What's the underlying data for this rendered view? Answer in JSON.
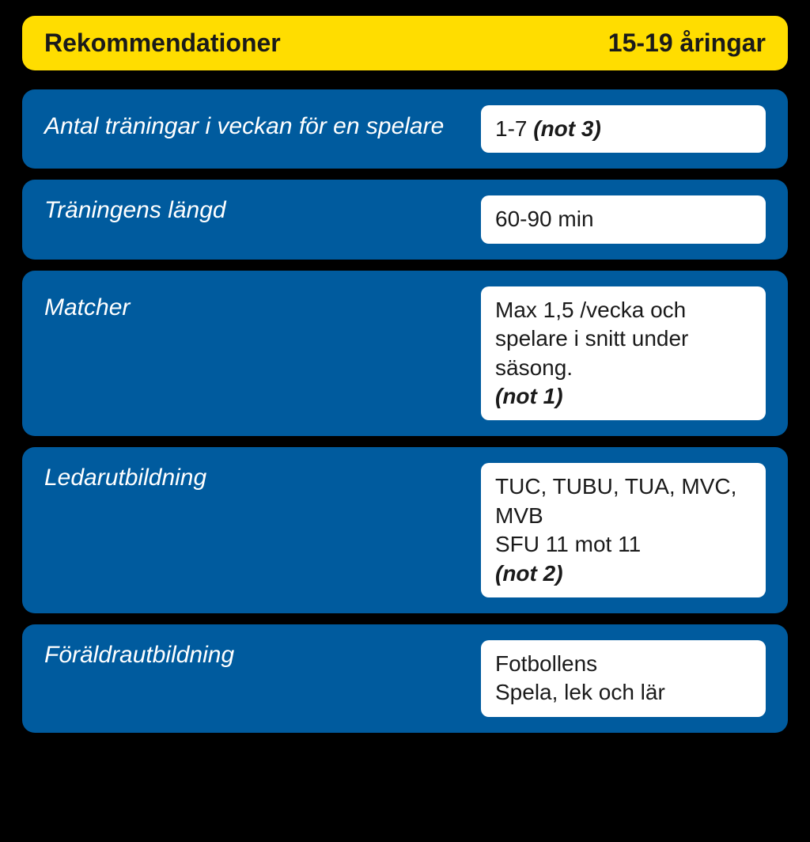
{
  "header": {
    "title": "Rekommendationer",
    "age_group": "15-19 åringar"
  },
  "rows": [
    {
      "label": "Antal träningar i veckan för en spelare",
      "value_plain": "1-7 ",
      "value_note": "(not 3)"
    },
    {
      "label": "Träningens längd",
      "value_plain": "60-90 min",
      "value_note": ""
    },
    {
      "label": "Matcher",
      "value_plain": "Max 1,5 /vecka och spelare i snitt under säsong.",
      "value_note": "(not 1)"
    },
    {
      "label": "Ledarutbildning",
      "value_line1": "TUC, TUBU, TUA, MVC, MVB",
      "value_line2": "SFU 11  mot  11",
      "value_note": "(not 2)"
    },
    {
      "label": "Föräldrautbildning",
      "value_line1": "Fotbollens",
      "value_line2": "Spela, lek och lär",
      "value_note": ""
    }
  ],
  "colors": {
    "background": "#000000",
    "header_bg": "#ffdd00",
    "row_bg": "#005b9e",
    "value_bg": "#ffffff",
    "header_text": "#1a1a1a",
    "label_text": "#ffffff",
    "value_text": "#1a1a1a"
  },
  "typography": {
    "header_fontsize": 32,
    "label_fontsize": 30,
    "value_fontsize": 28,
    "header_weight": 700,
    "note_weight": 700
  },
  "layout": {
    "border_radius": 16,
    "value_border_radius": 10,
    "row_gap": 14,
    "padding_x": 28,
    "value_width": 360
  }
}
